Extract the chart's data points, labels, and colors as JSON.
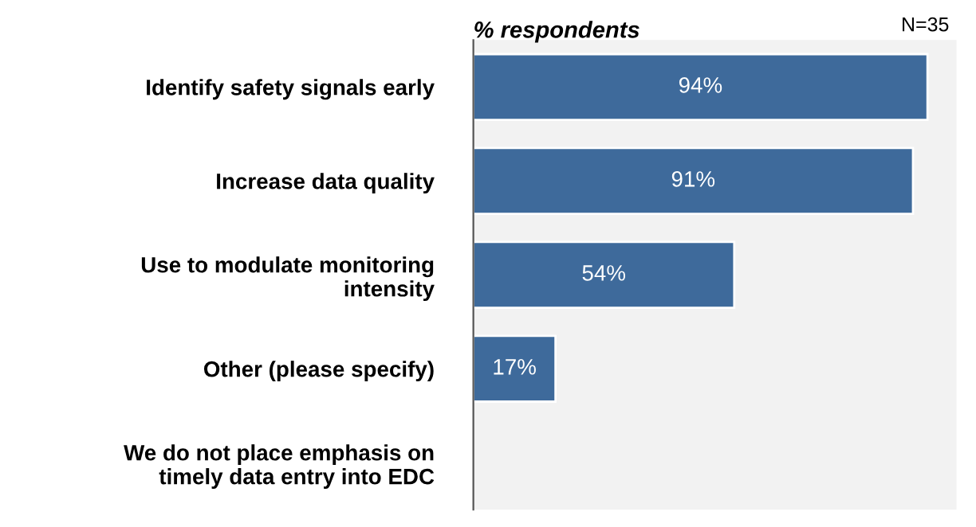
{
  "chart_data": {
    "type": "bar",
    "orientation": "horizontal",
    "xlabel": "% respondents",
    "annotations": [
      "N=35"
    ],
    "categories": [
      "Identify safety signals early",
      "Increase data quality",
      "Use to modulate monitoring intensity",
      "Other (please specify)",
      "We do not place emphasis on timely data entry into EDC"
    ],
    "values": [
      94,
      91,
      54,
      17,
      null
    ],
    "color": "#3e6a9b",
    "value_labels": [
      "94%",
      "91%",
      "54%",
      "17%",
      null
    ],
    "xlim": [
      0,
      100
    ],
    "tick_labels": "y",
    "grid": false,
    "legend": false
  }
}
